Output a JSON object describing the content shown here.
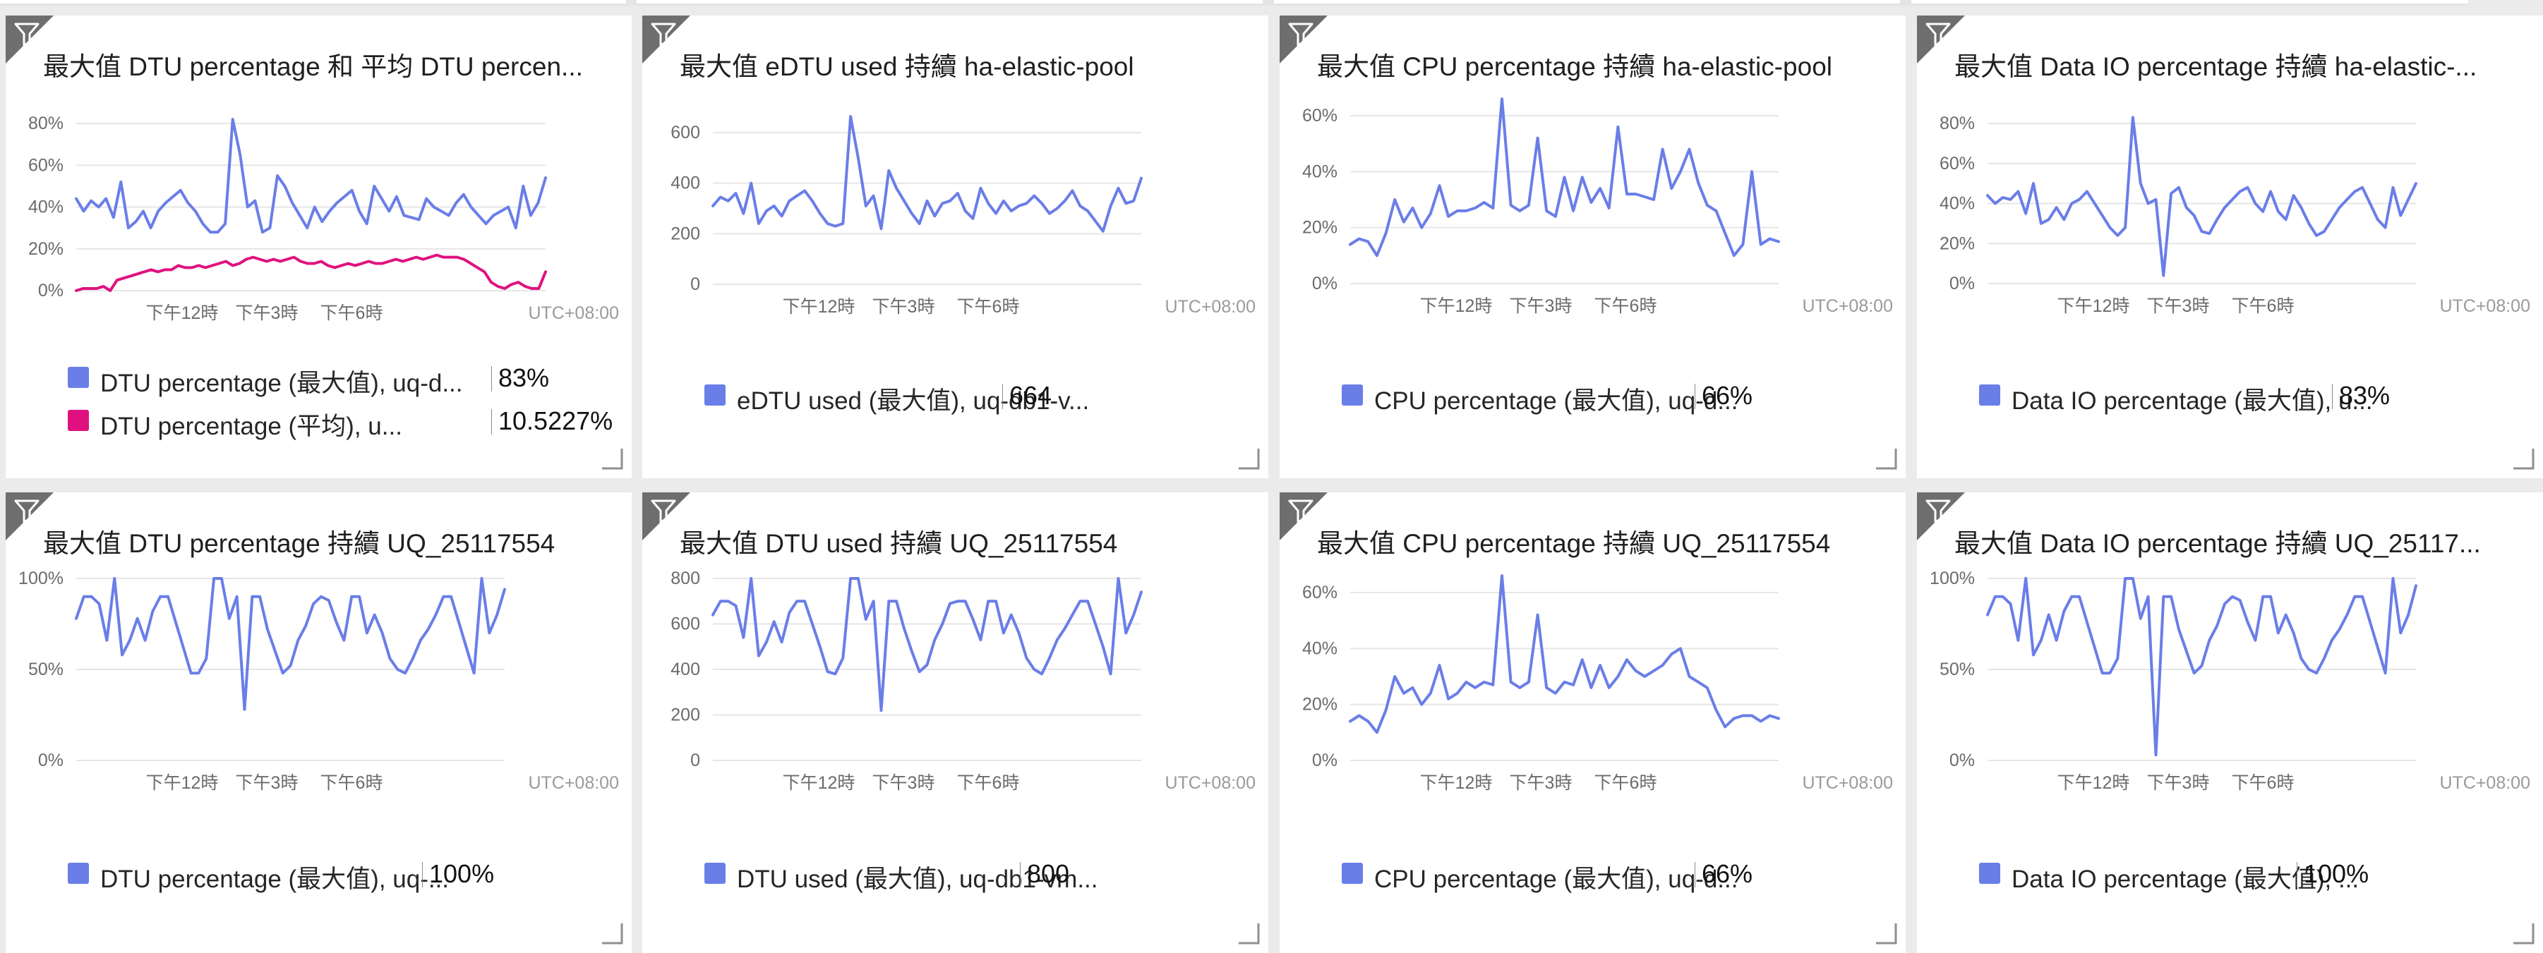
{
  "colors": {
    "blue": "#6a7ee8",
    "magenta": "#e0117f"
  },
  "icons": {
    "filter": "filter-icon",
    "resize": "resize-handle-icon"
  },
  "tiles": [
    {
      "title": "最大值 DTU percentage 和 平均 DTU percen...",
      "chart_data": {
        "type": "line",
        "y_ticks": [
          "80%",
          "60%",
          "40%",
          "20%",
          "0%"
        ],
        "ylim": [
          0,
          80
        ],
        "x_ticks": [
          "下午12時",
          "下午3時",
          "下午6時"
        ],
        "timezone": "UTC+08:00",
        "series": [
          {
            "color": "#6a7ee8",
            "values": [
              44,
              38,
              43,
              40,
              44,
              35,
              52,
              30,
              33,
              38,
              30,
              38,
              42,
              45,
              48,
              42,
              38,
              32,
              28,
              28,
              32,
              82,
              65,
              40,
              43,
              28,
              30,
              55,
              50,
              42,
              36,
              30,
              40,
              33,
              38,
              42,
              45,
              48,
              38,
              32,
              50,
              44,
              38,
              45,
              36,
              35,
              34,
              44,
              40,
              38,
              36,
              42,
              46,
              40,
              36,
              32,
              36,
              38,
              40,
              30,
              50,
              36,
              42,
              54
            ]
          },
          {
            "color": "#e0117f",
            "values": [
              0,
              1,
              1,
              1,
              2,
              0,
              5,
              6,
              7,
              8,
              9,
              10,
              9,
              10,
              10,
              12,
              11,
              11,
              12,
              11,
              12,
              13,
              14,
              12,
              13,
              15,
              16,
              15,
              14,
              15,
              14,
              15,
              16,
              14,
              13,
              13,
              14,
              12,
              11,
              12,
              13,
              12,
              13,
              14,
              13,
              13,
              14,
              15,
              14,
              15,
              16,
              15,
              16,
              17,
              16,
              16,
              16,
              15,
              13,
              11,
              9,
              4,
              2,
              1,
              3,
              4,
              2,
              1,
              1,
              9
            ]
          }
        ]
      },
      "legend": [
        {
          "color": "#6a7ee8",
          "label": "DTU percentage (最大值), uq-d...",
          "value": "83%"
        },
        {
          "color": "#e0117f",
          "label": "DTU percentage (平均), u...",
          "value": "10.5227%"
        }
      ]
    },
    {
      "title": "最大值 eDTU used 持續 ha-elastic-pool",
      "chart_data": {
        "type": "line",
        "y_ticks": [
          "600",
          "400",
          "200",
          "0"
        ],
        "ylim": [
          0,
          600
        ],
        "x_ticks": [
          "下午12時",
          "下午3時",
          "下午6時"
        ],
        "timezone": "UTC+08:00",
        "series": [
          {
            "color": "#6a7ee8",
            "values": [
              310,
              345,
              330,
              360,
              280,
              400,
              240,
              290,
              310,
              270,
              330,
              350,
              370,
              330,
              280,
              240,
              230,
              240,
              664,
              500,
              310,
              350,
              220,
              450,
              380,
              330,
              280,
              240,
              330,
              270,
              320,
              330,
              360,
              290,
              260,
              380,
              320,
              280,
              330,
              290,
              310,
              320,
              350,
              320,
              280,
              300,
              330,
              370,
              310,
              290,
              250,
              210,
              310,
              380,
              320,
              330,
              420
            ]
          }
        ]
      },
      "legend": [
        {
          "color": "#6a7ee8",
          "label": "eDTU used (最大值), uq-db1-v...",
          "value": "664"
        }
      ]
    },
    {
      "title": "最大值 CPU percentage 持續 ha-elastic-pool",
      "chart_data": {
        "type": "line",
        "y_ticks": [
          "60%",
          "40%",
          "20%",
          "0%"
        ],
        "ylim": [
          0,
          60
        ],
        "x_ticks": [
          "下午12時",
          "下午3時",
          "下午6時"
        ],
        "timezone": "UTC+08:00",
        "series": [
          {
            "color": "#6a7ee8",
            "values": [
              14,
              16,
              15,
              10,
              18,
              30,
              22,
              27,
              20,
              25,
              35,
              24,
              26,
              26,
              27,
              29,
              27,
              66,
              28,
              26,
              28,
              52,
              26,
              24,
              38,
              26,
              38,
              29,
              34,
              27,
              56,
              32,
              32,
              31,
              30,
              48,
              34,
              40,
              48,
              36,
              28,
              26,
              18,
              10,
              14,
              40,
              14,
              16,
              15
            ]
          }
        ]
      },
      "legend": [
        {
          "color": "#6a7ee8",
          "label": "CPU percentage (最大值), uq-d...",
          "value": "66%"
        }
      ]
    },
    {
      "title": "最大值 Data IO percentage 持續 ha-elastic-...",
      "chart_data": {
        "type": "line",
        "y_ticks": [
          "80%",
          "60%",
          "40%",
          "20%",
          "0%"
        ],
        "ylim": [
          0,
          80
        ],
        "x_ticks": [
          "下午12時",
          "下午3時",
          "下午6時"
        ],
        "timezone": "UTC+08:00",
        "series": [
          {
            "color": "#6a7ee8",
            "values": [
              44,
              40,
              43,
              42,
              46,
              35,
              50,
              30,
              32,
              38,
              32,
              40,
              42,
              46,
              40,
              34,
              28,
              24,
              28,
              83,
              50,
              40,
              42,
              4,
              45,
              48,
              38,
              34,
              26,
              25,
              32,
              38,
              42,
              46,
              48,
              40,
              36,
              46,
              36,
              32,
              44,
              38,
              30,
              24,
              26,
              32,
              38,
              42,
              46,
              48,
              40,
              32,
              28,
              48,
              34,
              42,
              50
            ]
          }
        ]
      },
      "legend": [
        {
          "color": "#6a7ee8",
          "label": "Data IO percentage (最大值), u...",
          "value": "83%"
        }
      ]
    },
    {
      "title": "最大值 DTU percentage 持續 UQ_25117554",
      "chart_data": {
        "type": "line",
        "y_ticks": [
          "100%",
          "50%",
          "0%"
        ],
        "ylim": [
          0,
          100
        ],
        "x_ticks": [
          "下午12時",
          "下午3時",
          "下午6時"
        ],
        "timezone": "UTC+08:00",
        "series": [
          {
            "color": "#6a7ee8",
            "values": [
              78,
              90,
              90,
              86,
              66,
              100,
              58,
              66,
              78,
              66,
              82,
              90,
              90,
              76,
              62,
              48,
              48,
              56,
              100,
              100,
              78,
              90,
              28,
              90,
              90,
              72,
              60,
              48,
              52,
              66,
              74,
              86,
              90,
              88,
              76,
              66,
              90,
              90,
              70,
              80,
              70,
              56,
              50,
              48,
              56,
              66,
              72,
              80,
              90,
              90,
              76,
              62,
              48,
              100,
              70,
              80,
              94
            ]
          }
        ]
      },
      "legend": [
        {
          "color": "#6a7ee8",
          "label": "DTU percentage (最大值), uq-...",
          "value": "100%"
        }
      ]
    },
    {
      "title": "最大值 DTU used 持續 UQ_25117554",
      "chart_data": {
        "type": "line",
        "y_ticks": [
          "800",
          "600",
          "400",
          "200",
          "0"
        ],
        "ylim": [
          0,
          800
        ],
        "x_ticks": [
          "下午12時",
          "下午3時",
          "下午6時"
        ],
        "timezone": "UTC+08:00",
        "series": [
          {
            "color": "#6a7ee8",
            "values": [
              640,
              700,
              700,
              680,
              540,
              800,
              460,
              520,
              610,
              520,
              650,
              700,
              700,
              600,
              500,
              390,
              380,
              450,
              800,
              800,
              620,
              700,
              220,
              700,
              700,
              580,
              480,
              390,
              420,
              530,
              600,
              690,
              700,
              700,
              620,
              530,
              700,
              700,
              560,
              640,
              560,
              450,
              400,
              380,
              450,
              530,
              580,
              640,
              700,
              700,
              600,
              500,
              380,
              800,
              560,
              640,
              740
            ]
          }
        ]
      },
      "legend": [
        {
          "color": "#6a7ee8",
          "label": "DTU used (最大值), uq-db1-vm...",
          "value": "800"
        }
      ]
    },
    {
      "title": "最大值 CPU percentage 持續 UQ_25117554",
      "chart_data": {
        "type": "line",
        "y_ticks": [
          "60%",
          "40%",
          "20%",
          "0%"
        ],
        "ylim": [
          0,
          60
        ],
        "x_ticks": [
          "下午12時",
          "下午3時",
          "下午6時"
        ],
        "timezone": "UTC+08:00",
        "series": [
          {
            "color": "#6a7ee8",
            "values": [
              14,
              16,
              14,
              10,
              18,
              30,
              24,
              26,
              20,
              24,
              34,
              22,
              24,
              28,
              26,
              28,
              27,
              66,
              28,
              26,
              28,
              52,
              26,
              24,
              28,
              27,
              36,
              26,
              34,
              26,
              30,
              36,
              32,
              30,
              32,
              34,
              38,
              40,
              30,
              28,
              26,
              18,
              12,
              15,
              16,
              16,
              14,
              16,
              15
            ]
          }
        ]
      },
      "legend": [
        {
          "color": "#6a7ee8",
          "label": "CPU percentage (最大值), uq-d...",
          "value": "66%"
        }
      ]
    },
    {
      "title": "最大值 Data IO percentage 持續 UQ_25117...",
      "chart_data": {
        "type": "line",
        "y_ticks": [
          "100%",
          "50%",
          "0%"
        ],
        "ylim": [
          0,
          100
        ],
        "x_ticks": [
          "下午12時",
          "下午3時",
          "下午6時"
        ],
        "timezone": "UTC+08:00",
        "series": [
          {
            "color": "#6a7ee8",
            "values": [
              80,
              90,
              90,
              86,
              66,
              100,
              58,
              66,
              80,
              66,
              82,
              90,
              90,
              76,
              62,
              48,
              48,
              56,
              100,
              100,
              78,
              90,
              3,
              90,
              90,
              72,
              60,
              48,
              52,
              66,
              74,
              86,
              90,
              88,
              76,
              66,
              90,
              90,
              70,
              80,
              70,
              56,
              50,
              48,
              56,
              66,
              72,
              80,
              90,
              90,
              76,
              62,
              48,
              100,
              70,
              80,
              96
            ]
          }
        ]
      },
      "legend": [
        {
          "color": "#6a7ee8",
          "label": "Data IO percentage (最大值), ...",
          "value": "100%"
        }
      ]
    }
  ]
}
